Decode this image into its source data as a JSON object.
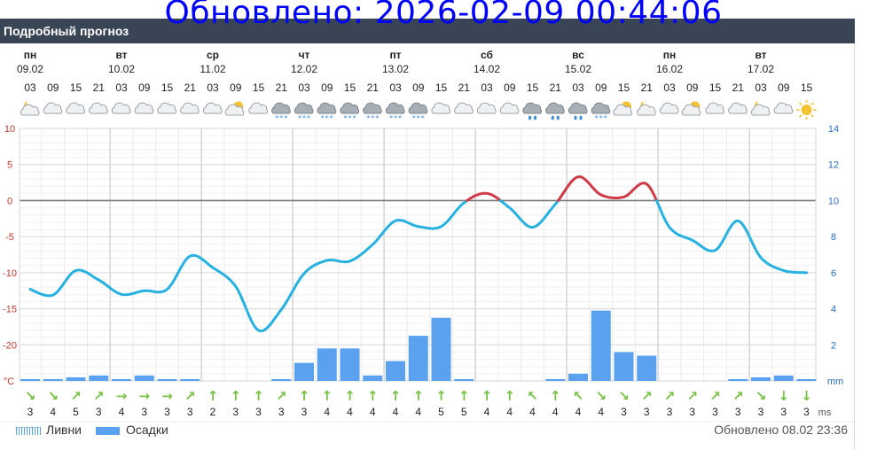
{
  "overlay_text": "Обновлено: 2026-02-09 00:44:06",
  "header": {
    "title": "Подробный прогноз"
  },
  "days": [
    {
      "name": "пн",
      "date": "09.02"
    },
    {
      "name": "вт",
      "date": "10.02"
    },
    {
      "name": "ср",
      "date": "11.02"
    },
    {
      "name": "чт",
      "date": "12.02"
    },
    {
      "name": "пт",
      "date": "13.02"
    },
    {
      "name": "сб",
      "date": "14.02"
    },
    {
      "name": "вс",
      "date": "15.02"
    },
    {
      "name": "пн",
      "date": "16.02"
    },
    {
      "name": "вт",
      "date": "17.02"
    }
  ],
  "hours": [
    "03",
    "09",
    "15",
    "21",
    "03",
    "09",
    "15",
    "21",
    "03",
    "09",
    "15",
    "21",
    "03",
    "09",
    "15",
    "21",
    "03",
    "09",
    "15",
    "21",
    "03",
    "09",
    "15",
    "21",
    "03",
    "09",
    "15",
    "21",
    "03",
    "09",
    "15",
    "21",
    "03",
    "09",
    "15"
  ],
  "weather_icons": [
    "partly-cloudy-night-icon",
    "cloudy-icon",
    "cloudy-icon",
    "cloudy-icon",
    "cloudy-icon",
    "cloudy-icon",
    "cloudy-icon",
    "cloudy-icon",
    "cloudy-icon",
    "partly-cloudy-icon",
    "cloudy-icon",
    "snow-icon",
    "snow-icon",
    "snow-icon",
    "snow-icon",
    "snow-icon",
    "snow-icon",
    "snow-icon",
    "cloudy-icon",
    "cloudy-icon",
    "cloudy-icon",
    "cloudy-icon",
    "rain-icon",
    "rain-icon",
    "rain-icon",
    "snow-icon",
    "partly-cloudy-icon",
    "partly-cloudy-night-icon",
    "cloudy-icon",
    "partly-cloudy-icon",
    "cloudy-icon",
    "cloudy-icon",
    "partly-cloudy-night-icon",
    "cloudy-icon",
    "sunny-icon"
  ],
  "chart_data": {
    "type": "line",
    "title": "Подробный прогноз",
    "xlabel": "",
    "ylabel": "°C",
    "ylim": [
      -25,
      10
    ],
    "yticks_left": [
      10,
      5,
      0,
      -5,
      -10,
      -15,
      -20
    ],
    "left_unit": "°C",
    "right_ylabel": "mm",
    "right_ylim": [
      0,
      14
    ],
    "yticks_right": [
      14,
      12,
      10,
      8,
      6,
      4,
      2
    ],
    "right_unit": "mm",
    "grid": true,
    "series": [
      {
        "type": "line",
        "x": [
          "09.02 03",
          "09.02 09",
          "09.02 15",
          "09.02 21",
          "10.02 03",
          "10.02 09",
          "10.02 15",
          "10.02 21",
          "11.02 03",
          "11.02 09",
          "11.02 15",
          "11.02 21",
          "12.02 03",
          "12.02 09",
          "12.02 15",
          "12.02 21",
          "13.02 03",
          "13.02 09",
          "13.02 15",
          "13.02 21",
          "14.02 03",
          "14.02 09",
          "14.02 15",
          "14.02 21",
          "15.02 03",
          "15.02 09",
          "15.02 15",
          "15.02 21",
          "16.02 03",
          "16.02 09",
          "16.02 15",
          "16.02 21",
          "17.02 03",
          "17.02 09",
          "17.02 15"
        ],
        "values": [
          -12.3,
          -13.1,
          -9.7,
          -11.0,
          -13.0,
          -12.5,
          -12.3,
          -7.7,
          -9.3,
          -11.9,
          -18.0,
          -15.1,
          -10.1,
          -8.3,
          -8.4,
          -6.1,
          -2.8,
          -3.6,
          -3.6,
          -0.3,
          1.0,
          -1.0,
          -3.7,
          -0.5,
          3.3,
          0.8,
          0.5,
          2.3,
          -3.7,
          -5.5,
          -6.9,
          -2.8,
          -7.9,
          -9.7,
          -10.0
        ],
        "above_zero_color": "#d03a46",
        "below_zero_color": "#27b1e0"
      },
      {
        "name": "Осадки",
        "type": "bar",
        "values": [
          0.1,
          0.1,
          0.2,
          0.3,
          0.1,
          0.3,
          0.1,
          0.1,
          0,
          0,
          0,
          0.1,
          1.0,
          1.8,
          1.8,
          0.3,
          1.1,
          2.5,
          3.5,
          0.1,
          0,
          0,
          0,
          0.1,
          0.4,
          3.9,
          1.6,
          1.4,
          0,
          0,
          0,
          0.1,
          0.2,
          0.3,
          0.1
        ],
        "color": "#5aa2ef"
      },
      {
        "name": "Ливни",
        "type": "bar",
        "values": [],
        "color": "#5aa2ef",
        "pattern": "dotted"
      }
    ]
  },
  "wind": {
    "unit": "ms",
    "speeds": [
      3,
      4,
      5,
      3,
      4,
      3,
      3,
      3,
      2,
      3,
      3,
      3,
      3,
      4,
      4,
      4,
      4,
      4,
      5,
      5,
      4,
      4,
      4,
      4,
      4,
      4,
      3,
      3,
      3,
      3,
      3,
      3,
      3,
      3,
      3
    ],
    "arrow_color": "#77c145",
    "directions": [
      "↘",
      "↘",
      "↗",
      "↗",
      "→",
      "→",
      "→",
      "↗",
      "↑",
      "↑",
      "↑",
      "↗",
      "↑",
      "↑",
      "↑",
      "↑",
      "↑",
      "↑",
      "↑",
      "↑",
      "↑",
      "↑",
      "↖",
      "↑",
      "↖",
      "↘",
      "↘",
      "↗",
      "↗",
      "↗",
      "↗",
      "↗",
      "↘",
      "↓",
      "↓"
    ]
  },
  "legend": {
    "showers": "Ливни",
    "precip": "Осадки"
  },
  "updated": "Обновлено 08.02 23:36",
  "colors": {
    "header_bg": "#394554",
    "temp_line_below_zero": "#27b1e0",
    "temp_line_above_zero": "#d03a46",
    "precip_bar": "#5aa2ef",
    "wind_arrow": "#77c145",
    "left_axis": "#c0392b",
    "right_axis": "#2a6fbf"
  }
}
